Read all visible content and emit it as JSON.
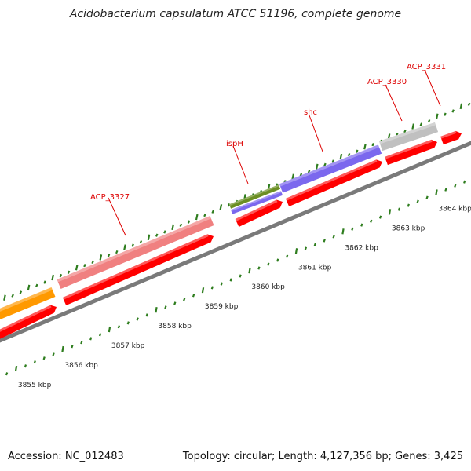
{
  "title": "Acidobacterium capsulatum ATCC 51196, complete genome",
  "footer": {
    "accession": "Accession: NC_012483",
    "summary": "Topology: circular; Length: 4,127,356 bp; Genes: 3,425"
  },
  "colors": {
    "backbone": "#808080",
    "cds_strand": "#ff0000",
    "gene_label": "#dd0000",
    "tick": "#2e7d1e",
    "tick_label": "#222222"
  },
  "scale_labels": [
    "3855 kbp",
    "3856 kbp",
    "3857 kbp",
    "3858 kbp",
    "3859 kbp",
    "3860 kbp",
    "3861 kbp",
    "3862 kbp",
    "3863 kbp",
    "3864 kbp"
  ],
  "genes": [
    {
      "label": "",
      "color": "#ff9900"
    },
    {
      "label": "ACP_3327",
      "color": "#f08080"
    },
    {
      "label": "ispH",
      "color": "#6b8e23"
    },
    {
      "label": "",
      "color": "#7b68ee"
    },
    {
      "label": "shc",
      "color": "#7b68ee"
    },
    {
      "label": "ACP_3330",
      "color": "#c0c0c0"
    },
    {
      "label": "ACP_3331",
      "color": "#ff0000"
    }
  ]
}
